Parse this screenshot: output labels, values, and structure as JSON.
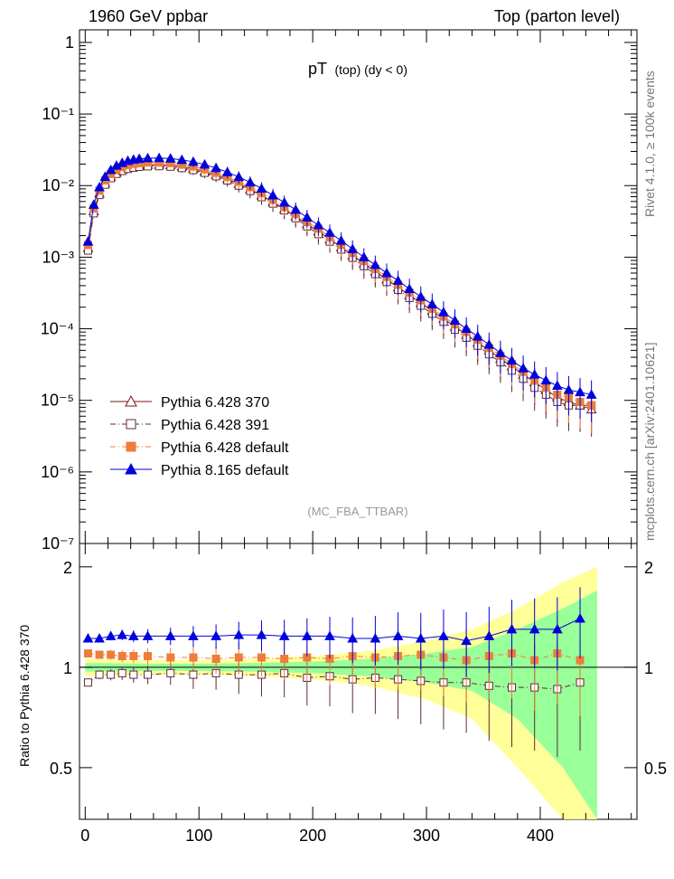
{
  "header": {
    "left": "1960 GeV ppbar",
    "right": "Top (parton level)"
  },
  "side": {
    "rivet": "Rivet 4.1.0, ≥ 100k events",
    "site": "mcplots.cern.ch [arXiv:2401.10621]"
  },
  "analysis_tag": "(MC_FBA_TTBAR)",
  "plot_title": {
    "main": "pT",
    "sub": "(top) (dy < 0)"
  },
  "chart_data": [
    {
      "type": "scatter",
      "title": "pT (top) (dy < 0)",
      "yscale": "log",
      "xlim": [
        -5,
        485
      ],
      "ylim": [
        1e-07,
        1.5
      ],
      "ytick_labels": [
        "1",
        "10⁻¹",
        "10⁻²",
        "10⁻³",
        "10⁻⁴",
        "10⁻⁵",
        "10⁻⁶",
        "10⁻⁷"
      ],
      "ytick_values": [
        1,
        0.1,
        0.01,
        0.001,
        0.0001,
        1e-05,
        1e-06,
        1e-07
      ],
      "legend_position": "lower-left",
      "series": [
        {
          "name": "Pythia 6.428 370",
          "color": "#7a1417",
          "marker": "open-triangle",
          "style": "solid",
          "x": [
            2.5,
            7.5,
            12.5,
            17.5,
            22.5,
            27.5,
            32.5,
            37.5,
            42.5,
            47.5,
            55,
            65,
            75,
            85,
            95,
            105,
            115,
            125,
            135,
            145,
            155,
            165,
            175,
            185,
            195,
            205,
            215,
            225,
            235,
            245,
            255,
            265,
            275,
            285,
            295,
            305,
            315,
            325,
            335,
            345,
            355,
            365,
            375,
            385,
            395,
            405,
            415,
            425,
            435,
            445
          ],
          "y": [
            0.00135,
            0.0044,
            0.0078,
            0.0108,
            0.0133,
            0.0152,
            0.0167,
            0.0178,
            0.0186,
            0.0191,
            0.0195,
            0.0196,
            0.0193,
            0.0185,
            0.0173,
            0.0158,
            0.0142,
            0.0124,
            0.0106,
            0.0089,
            0.0073,
            0.0059,
            0.0047,
            0.0037,
            0.0029,
            0.0023,
            0.00178,
            0.00138,
            0.00106,
            0.00082,
            0.00063,
            0.00049,
            0.00038,
            0.000295,
            0.00023,
            0.000178,
            0.000138,
            0.000107,
            8.3e-05,
            6.4e-05,
            5e-05,
            3.8e-05,
            3e-05,
            2.3e-05,
            1.8e-05,
            1.4e-05,
            1.1e-05,
            9.5e-06,
            8.5e-06,
            7.5e-06
          ]
        },
        {
          "name": "Pythia 6.428 391",
          "color": "#5e2a3a",
          "marker": "open-square",
          "style": "dash-dot",
          "x": [
            2.5,
            7.5,
            12.5,
            17.5,
            22.5,
            27.5,
            32.5,
            37.5,
            42.5,
            47.5,
            55,
            65,
            75,
            85,
            95,
            105,
            115,
            125,
            135,
            145,
            155,
            165,
            175,
            185,
            195,
            205,
            215,
            225,
            235,
            245,
            255,
            265,
            275,
            285,
            295,
            305,
            315,
            325,
            335,
            345,
            355,
            365,
            375,
            385,
            395,
            405,
            415,
            425,
            435,
            445
          ],
          "y": [
            0.00124,
            0.0041,
            0.0074,
            0.0103,
            0.0127,
            0.0146,
            0.016,
            0.0171,
            0.0178,
            0.0183,
            0.0186,
            0.0187,
            0.0184,
            0.0176,
            0.0165,
            0.0151,
            0.0135,
            0.0118,
            0.01,
            0.0084,
            0.0069,
            0.0056,
            0.0045,
            0.0035,
            0.0027,
            0.0021,
            0.00165,
            0.00128,
            0.00098,
            0.00075,
            0.00058,
            0.00045,
            0.00035,
            0.00027,
            0.00021,
            0.000162,
            0.000125,
            9.7e-05,
            7.5e-05,
            5.8e-05,
            4.4e-05,
            3.4e-05,
            2.6e-05,
            2e-05,
            1.5e-05,
            1.2e-05,
            9.5e-06,
            8.5e-06,
            8.5e-06,
            8.5e-06
          ]
        },
        {
          "name": "Pythia 6.428 default",
          "color": "#ee7d3b",
          "marker": "filled-square",
          "style": "dash-dot",
          "x": [
            2.5,
            7.5,
            12.5,
            17.5,
            22.5,
            27.5,
            32.5,
            37.5,
            42.5,
            47.5,
            55,
            65,
            75,
            85,
            95,
            105,
            115,
            125,
            135,
            145,
            155,
            165,
            175,
            185,
            195,
            205,
            215,
            225,
            235,
            245,
            255,
            265,
            275,
            285,
            295,
            305,
            315,
            325,
            335,
            345,
            355,
            365,
            375,
            385,
            395,
            405,
            415,
            425,
            435,
            445
          ],
          "y": [
            0.00148,
            0.0048,
            0.0085,
            0.0118,
            0.0145,
            0.0165,
            0.0181,
            0.0193,
            0.0201,
            0.0206,
            0.021,
            0.021,
            0.0206,
            0.0197,
            0.0185,
            0.0169,
            0.0151,
            0.0132,
            0.0113,
            0.0095,
            0.0078,
            0.0063,
            0.005,
            0.004,
            0.0031,
            0.0025,
            0.0019,
            0.00148,
            0.00114,
            0.00088,
            0.00068,
            0.00053,
            0.00041,
            0.00032,
            0.00025,
            0.00019,
            0.000148,
            0.000115,
            9e-05,
            7e-05,
            5.4e-05,
            4.2e-05,
            3.2e-05,
            2.5e-05,
            1.9e-05,
            1.5e-05,
            1.2e-05,
            1.1e-05,
            9.5e-06,
            8.5e-06
          ]
        },
        {
          "name": "Pythia 8.165 default",
          "color": "#0000dd",
          "marker": "filled-triangle",
          "style": "solid",
          "x": [
            2.5,
            7.5,
            12.5,
            17.5,
            22.5,
            27.5,
            32.5,
            37.5,
            42.5,
            47.5,
            55,
            65,
            75,
            85,
            95,
            105,
            115,
            125,
            135,
            145,
            155,
            165,
            175,
            185,
            195,
            205,
            215,
            225,
            235,
            245,
            255,
            265,
            275,
            285,
            295,
            305,
            315,
            325,
            335,
            345,
            355,
            365,
            375,
            385,
            395,
            405,
            415,
            425,
            435,
            445
          ],
          "y": [
            0.00165,
            0.0054,
            0.0095,
            0.0133,
            0.0165,
            0.019,
            0.0208,
            0.0222,
            0.0231,
            0.0237,
            0.0242,
            0.0243,
            0.0239,
            0.0229,
            0.0215,
            0.0197,
            0.0176,
            0.0154,
            0.0132,
            0.0111,
            0.0091,
            0.0073,
            0.0058,
            0.0046,
            0.0036,
            0.0028,
            0.0022,
            0.0017,
            0.0013,
            0.001,
            0.00078,
            0.0006,
            0.00047,
            0.00036,
            0.00028,
            0.00022,
            0.00017,
            0.00013,
            0.0001,
            7.8e-05,
            6e-05,
            4.6e-05,
            3.6e-05,
            2.8e-05,
            2.3e-05,
            1.9e-05,
            1.6e-05,
            1.4e-05,
            1.3e-05,
            1.2e-05
          ]
        }
      ]
    },
    {
      "type": "scatter",
      "title": "Ratio to Pythia 6.428 370",
      "xlabel": "",
      "ylabel": "Ratio to Pythia 6.428 370",
      "xlim": [
        -5,
        485
      ],
      "ylim": [
        0.35,
        2.35
      ],
      "xtick_labels": [
        "0",
        "100",
        "200",
        "300",
        "400"
      ],
      "xtick_values": [
        0,
        100,
        200,
        300,
        400
      ],
      "ytick_labels": [
        "0.5",
        "1",
        "2"
      ],
      "ytick_values": [
        0.5,
        1,
        2
      ],
      "bands": [
        {
          "name": "yellow uncertainty band",
          "color": "#ffff99",
          "x": [
            0,
            50,
            100,
            150,
            200,
            250,
            300,
            340,
            380,
            420,
            450
          ],
          "half_width": [
            0.06,
            0.05,
            0.05,
            0.06,
            0.08,
            0.12,
            0.2,
            0.3,
            0.5,
            0.8,
            1.0
          ]
        },
        {
          "name": "green uncertainty band",
          "color": "#99ff99",
          "x": [
            0,
            50,
            100,
            150,
            200,
            250,
            300,
            340,
            380,
            420,
            450
          ],
          "half_width": [
            0.03,
            0.025,
            0.025,
            0.03,
            0.04,
            0.06,
            0.1,
            0.15,
            0.3,
            0.5,
            0.7
          ]
        }
      ],
      "series": [
        {
          "name": "Pythia 6.428 391",
          "x": [
            2.5,
            12.5,
            22.5,
            32.5,
            42.5,
            55,
            75,
            95,
            115,
            135,
            155,
            175,
            195,
            215,
            235,
            255,
            275,
            295,
            315,
            335,
            355,
            375,
            395,
            415,
            435
          ],
          "y": [
            0.9,
            0.95,
            0.95,
            0.96,
            0.95,
            0.95,
            0.96,
            0.95,
            0.96,
            0.95,
            0.95,
            0.96,
            0.93,
            0.94,
            0.92,
            0.93,
            0.92,
            0.91,
            0.9,
            0.9,
            0.88,
            0.87,
            0.87,
            0.86,
            0.9
          ]
        },
        {
          "name": "Pythia 6.428 default",
          "x": [
            2.5,
            12.5,
            22.5,
            32.5,
            42.5,
            55,
            75,
            95,
            115,
            135,
            155,
            175,
            195,
            215,
            235,
            255,
            275,
            295,
            315,
            335,
            355,
            375,
            395,
            415,
            435
          ],
          "y": [
            1.1,
            1.09,
            1.09,
            1.08,
            1.08,
            1.08,
            1.07,
            1.07,
            1.06,
            1.07,
            1.07,
            1.06,
            1.07,
            1.06,
            1.08,
            1.07,
            1.08,
            1.09,
            1.07,
            1.05,
            1.08,
            1.1,
            1.05,
            1.1,
            1.05
          ]
        },
        {
          "name": "Pythia 8.165 default",
          "x": [
            2.5,
            12.5,
            22.5,
            32.5,
            42.5,
            55,
            75,
            95,
            115,
            135,
            155,
            175,
            195,
            215,
            235,
            255,
            275,
            295,
            315,
            335,
            355,
            375,
            395,
            415,
            435
          ],
          "y": [
            1.22,
            1.22,
            1.24,
            1.25,
            1.24,
            1.24,
            1.24,
            1.24,
            1.24,
            1.25,
            1.25,
            1.24,
            1.24,
            1.24,
            1.22,
            1.22,
            1.24,
            1.22,
            1.24,
            1.2,
            1.24,
            1.3,
            1.3,
            1.3,
            1.4
          ]
        }
      ]
    }
  ]
}
